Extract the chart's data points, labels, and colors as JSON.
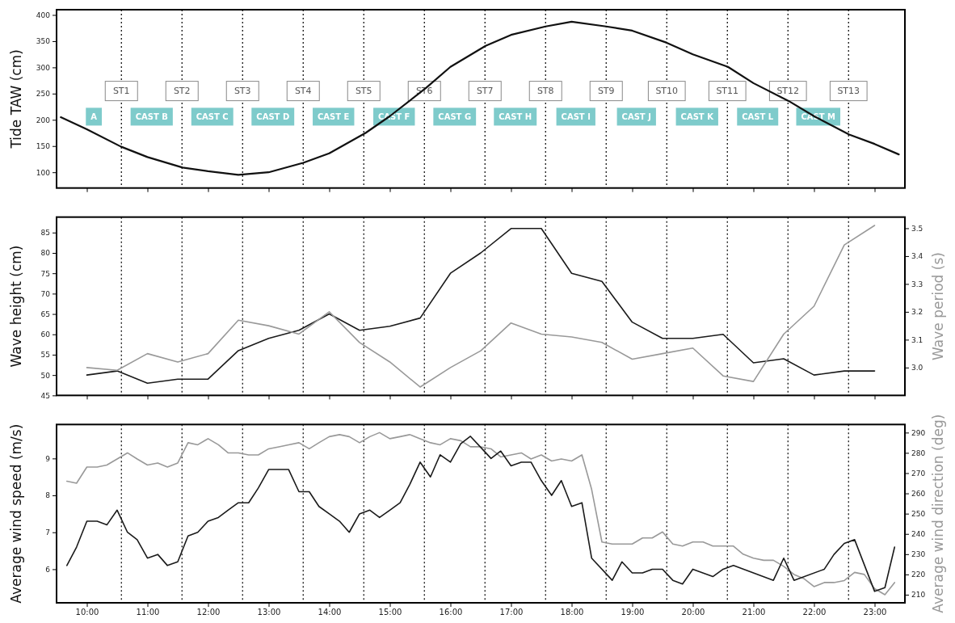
{
  "chart_data": [
    {
      "type": "line",
      "ylabel": "Tide TAW (cm)",
      "xlim": [
        9.5,
        23.5
      ],
      "ylim": [
        70,
        410
      ],
      "tick_labels": "y",
      "xticks": [
        {
          "value": 10,
          "label": null
        },
        {
          "value": 11,
          "label": null
        },
        {
          "value": 12,
          "label": null
        },
        {
          "value": 13,
          "label": null
        },
        {
          "value": 14,
          "label": null
        },
        {
          "value": 15,
          "label": null
        },
        {
          "value": 16,
          "label": null
        },
        {
          "value": 17,
          "label": null
        },
        {
          "value": 18,
          "label": null
        },
        {
          "value": 19,
          "label": null
        },
        {
          "value": 20,
          "label": null
        },
        {
          "value": 21,
          "label": null
        },
        {
          "value": 22,
          "label": null
        },
        {
          "value": 23,
          "label": null
        }
      ],
      "yticks": [
        100,
        150,
        200,
        250,
        300,
        350,
        400
      ],
      "series": [
        {
          "color": "#111111",
          "x": [
            9.57,
            10,
            10.56,
            11,
            11.58,
            12,
            12.5,
            13,
            13.57,
            14,
            14.6,
            15,
            15.6,
            16,
            16.58,
            17,
            17.57,
            18,
            18.57,
            19,
            19.57,
            20,
            20.58,
            21,
            21.58,
            22,
            22.58,
            23,
            23.4
          ],
          "values": [
            205,
            182,
            149,
            129,
            109,
            102,
            95,
            100,
            118,
            136,
            175,
            207,
            261,
            301,
            341,
            362,
            378,
            387,
            378,
            370,
            347,
            325,
            301,
            270,
            236,
            207,
            172,
            154,
            134
          ]
        }
      ],
      "ref_lines": [
        {
          "axis": "x",
          "value": 10.57,
          "label": "ST1",
          "line_style": "dotted",
          "color": "#000000"
        },
        {
          "axis": "x",
          "value": 11.57,
          "label": "ST2",
          "line_style": "dotted",
          "color": "#000000"
        },
        {
          "axis": "x",
          "value": 12.57,
          "label": "ST3",
          "line_style": "dotted",
          "color": "#000000"
        },
        {
          "axis": "x",
          "value": 13.57,
          "label": "ST4",
          "line_style": "dotted",
          "color": "#000000"
        },
        {
          "axis": "x",
          "value": 14.57,
          "label": "ST5",
          "line_style": "dotted",
          "color": "#000000"
        },
        {
          "axis": "x",
          "value": 15.57,
          "label": "ST6",
          "line_style": "dotted",
          "color": "#000000"
        },
        {
          "axis": "x",
          "value": 16.57,
          "label": "ST7",
          "line_style": "dotted",
          "color": "#000000"
        },
        {
          "axis": "x",
          "value": 17.57,
          "label": "ST8",
          "line_style": "dotted",
          "color": "#000000"
        },
        {
          "axis": "x",
          "value": 18.57,
          "label": "ST9",
          "line_style": "dotted",
          "color": "#000000"
        },
        {
          "axis": "x",
          "value": 19.57,
          "label": "ST10",
          "line_style": "dotted",
          "color": "#000000"
        },
        {
          "axis": "x",
          "value": 20.57,
          "label": "ST11",
          "line_style": "dotted",
          "color": "#000000"
        },
        {
          "axis": "x",
          "value": 21.57,
          "label": "ST12",
          "line_style": "dotted",
          "color": "#000000"
        },
        {
          "axis": "x",
          "value": 22.57,
          "label": "ST13",
          "line_style": "dotted",
          "color": "#000000"
        }
      ],
      "annotations": [
        "A",
        "CAST B",
        "CAST C",
        "CAST D",
        "CAST E",
        "CAST F",
        "CAST G",
        "CAST H",
        "CAST I",
        "CAST J",
        "CAST K",
        "CAST L",
        "CAST M"
      ]
    },
    {
      "type": "line",
      "ylabel": "Wave height (cm)",
      "y2label": "Wave period (s)",
      "xlim": [
        9.5,
        23.5
      ],
      "ylim": [
        45,
        88.8
      ],
      "y2lim": [
        2.9,
        3.54
      ],
      "tick_labels": "y",
      "xticks": [
        {
          "value": 10,
          "label": null
        },
        {
          "value": 11,
          "label": null
        },
        {
          "value": 12,
          "label": null
        },
        {
          "value": 13,
          "label": null
        },
        {
          "value": 14,
          "label": null
        },
        {
          "value": 15,
          "label": null
        },
        {
          "value": 16,
          "label": null
        },
        {
          "value": 17,
          "label": null
        },
        {
          "value": 18,
          "label": null
        },
        {
          "value": 19,
          "label": null
        },
        {
          "value": 20,
          "label": null
        },
        {
          "value": 21,
          "label": null
        },
        {
          "value": 22,
          "label": null
        },
        {
          "value": 23,
          "label": null
        }
      ],
      "yticks": [
        45,
        50,
        55,
        60,
        65,
        70,
        75,
        80,
        85
      ],
      "y2ticks": [
        {
          "value": 3.0,
          "label": "3.0"
        },
        {
          "value": 3.1,
          "label": "3.1"
        },
        {
          "value": 3.2,
          "label": "3.2"
        },
        {
          "value": 3.3,
          "label": "3.3"
        },
        {
          "value": 3.4,
          "label": "3.4"
        },
        {
          "value": 3.5,
          "label": "3.5"
        }
      ],
      "series": [
        {
          "color": "#1a1a1a",
          "x": [
            10,
            10.5,
            11,
            11.5,
            12,
            12.5,
            13,
            13.5,
            14,
            14.5,
            15,
            15.5,
            16,
            16.5,
            17,
            17.5,
            18,
            18.5,
            19,
            19.5,
            20,
            20.5,
            21,
            21.5,
            22,
            22.5,
            23
          ],
          "values": [
            50,
            51,
            48,
            49,
            49,
            56,
            59,
            61,
            65,
            61,
            62,
            64,
            75,
            80,
            86,
            86,
            75,
            73,
            63,
            59,
            59,
            60,
            53,
            54,
            50,
            51,
            51
          ]
        },
        {
          "color": "#999999",
          "axis": "y2",
          "x": [
            10,
            10.5,
            11,
            11.5,
            12,
            12.5,
            13,
            13.5,
            14,
            14.5,
            15,
            15.5,
            16,
            16.5,
            17,
            17.5,
            18,
            18.5,
            19,
            19.5,
            20,
            20.5,
            21,
            21.5,
            22,
            22.5,
            23
          ],
          "values": [
            3.0,
            2.99,
            3.05,
            3.02,
            3.05,
            3.17,
            3.15,
            3.12,
            3.2,
            3.09,
            3.02,
            2.93,
            3.0,
            3.06,
            3.16,
            3.12,
            3.11,
            3.09,
            3.03,
            3.05,
            3.07,
            2.97,
            2.95,
            3.12,
            3.22,
            3.44,
            3.51
          ]
        }
      ],
      "ref_lines": [
        {
          "axis": "x",
          "value": 10.57,
          "line_style": "dotted",
          "color": "#000000"
        },
        {
          "axis": "x",
          "value": 11.57,
          "line_style": "dotted",
          "color": "#000000"
        },
        {
          "axis": "x",
          "value": 12.57,
          "line_style": "dotted",
          "color": "#000000"
        },
        {
          "axis": "x",
          "value": 13.57,
          "line_style": "dotted",
          "color": "#000000"
        },
        {
          "axis": "x",
          "value": 14.57,
          "line_style": "dotted",
          "color": "#000000"
        },
        {
          "axis": "x",
          "value": 15.57,
          "line_style": "dotted",
          "color": "#000000"
        },
        {
          "axis": "x",
          "value": 16.57,
          "line_style": "dotted",
          "color": "#000000"
        },
        {
          "axis": "x",
          "value": 17.57,
          "line_style": "dotted",
          "color": "#000000"
        },
        {
          "axis": "x",
          "value": 18.57,
          "line_style": "dotted",
          "color": "#000000"
        },
        {
          "axis": "x",
          "value": 19.57,
          "line_style": "dotted",
          "color": "#000000"
        },
        {
          "axis": "x",
          "value": 20.57,
          "line_style": "dotted",
          "color": "#000000"
        },
        {
          "axis": "x",
          "value": 21.57,
          "line_style": "dotted",
          "color": "#000000"
        },
        {
          "axis": "x",
          "value": 22.57,
          "line_style": "dotted",
          "color": "#000000"
        }
      ]
    },
    {
      "type": "line",
      "ylabel": "Average wind speed (m/s)",
      "y2label": "Average wind direction (deg)",
      "xlim": [
        9.5,
        23.5
      ],
      "ylim": [
        5.09,
        9.92
      ],
      "y2lim": [
        206,
        294
      ],
      "xticks": [
        {
          "value": 10,
          "label": "10:00"
        },
        {
          "value": 11,
          "label": "11:00"
        },
        {
          "value": 12,
          "label": "12:00"
        },
        {
          "value": 13,
          "label": "13:00"
        },
        {
          "value": 14,
          "label": "14:00"
        },
        {
          "value": 15,
          "label": "15:00"
        },
        {
          "value": 16,
          "label": "16:00"
        },
        {
          "value": 17,
          "label": "17:00"
        },
        {
          "value": 18,
          "label": "18:00"
        },
        {
          "value": 19,
          "label": "19:00"
        },
        {
          "value": 20,
          "label": "20:00"
        },
        {
          "value": 21,
          "label": "21:00"
        },
        {
          "value": 22,
          "label": "22:00"
        },
        {
          "value": 23,
          "label": "23:00"
        }
      ],
      "yticks": [
        6,
        7,
        8,
        9
      ],
      "y2ticks": [
        210,
        220,
        230,
        240,
        250,
        260,
        270,
        280,
        290
      ],
      "series": [
        {
          "color": "#999999",
          "axis": "y2",
          "x": [
            9.67,
            9.83,
            10,
            10.17,
            10.33,
            10.5,
            10.67,
            10.83,
            11,
            11.17,
            11.33,
            11.5,
            11.67,
            11.83,
            12,
            12.17,
            12.33,
            12.5,
            12.67,
            12.83,
            13,
            13.17,
            13.33,
            13.5,
            13.67,
            13.83,
            14,
            14.17,
            14.33,
            14.5,
            14.67,
            14.83,
            15,
            15.17,
            15.33,
            15.5,
            15.67,
            15.83,
            16,
            16.17,
            16.33,
            16.5,
            16.67,
            16.83,
            17,
            17.17,
            17.33,
            17.5,
            17.67,
            17.83,
            18,
            18.17,
            18.33,
            18.5,
            18.67,
            18.83,
            19,
            19.17,
            19.33,
            19.5,
            19.67,
            19.83,
            20,
            20.17,
            20.33,
            20.5,
            20.67,
            20.83,
            21,
            21.17,
            21.33,
            21.5,
            21.67,
            21.83,
            22,
            22.17,
            22.33,
            22.5,
            22.67,
            22.83,
            23,
            23.17,
            23.33
          ],
          "values": [
            266,
            265,
            273,
            273,
            274,
            277,
            280,
            277,
            274,
            275,
            273,
            275,
            285,
            284,
            287,
            284,
            280,
            280,
            279,
            279,
            282,
            283,
            284,
            285,
            282,
            285,
            288,
            289,
            288,
            285,
            288,
            290,
            287,
            288,
            289,
            287,
            285,
            284,
            287,
            286,
            283,
            283,
            282,
            278,
            279,
            280,
            277,
            279,
            276,
            277,
            276,
            279,
            262,
            236,
            235,
            235,
            235,
            238,
            238,
            241,
            235,
            234,
            236,
            236,
            234,
            234,
            234,
            230,
            228,
            227,
            227,
            224,
            220,
            218,
            214,
            216,
            216,
            217,
            221,
            220,
            213,
            210,
            216
          ]
        },
        {
          "color": "#1a1a1a",
          "x": [
            9.67,
            9.83,
            10,
            10.17,
            10.33,
            10.5,
            10.67,
            10.83,
            11,
            11.17,
            11.33,
            11.5,
            11.67,
            11.83,
            12,
            12.17,
            12.33,
            12.5,
            12.67,
            12.83,
            13,
            13.17,
            13.33,
            13.5,
            13.67,
            13.83,
            14,
            14.17,
            14.33,
            14.5,
            14.67,
            14.83,
            15,
            15.17,
            15.33,
            15.5,
            15.67,
            15.83,
            16,
            16.17,
            16.33,
            16.5,
            16.67,
            16.83,
            17,
            17.17,
            17.33,
            17.5,
            17.67,
            17.83,
            18,
            18.17,
            18.33,
            18.67,
            18.83,
            19,
            19.17,
            19.33,
            19.5,
            19.67,
            19.83,
            20,
            20.33,
            20.5,
            20.67,
            21.33,
            21.5,
            21.67,
            22.17,
            22.33,
            22.5,
            22.67,
            23,
            23.17,
            23.33
          ],
          "values": [
            6.1,
            6.6,
            7.3,
            7.3,
            7.2,
            7.6,
            7.0,
            6.8,
            6.3,
            6.4,
            6.1,
            6.2,
            6.9,
            7.0,
            7.3,
            7.4,
            7.6,
            7.8,
            7.8,
            8.2,
            8.7,
            8.7,
            8.7,
            8.1,
            8.1,
            7.7,
            7.5,
            7.3,
            7.0,
            7.5,
            7.6,
            7.4,
            7.6,
            7.8,
            8.3,
            8.9,
            8.5,
            9.1,
            8.9,
            9.4,
            9.6,
            9.3,
            9.0,
            9.2,
            8.8,
            8.9,
            8.9,
            8.4,
            8.0,
            8.4,
            7.7,
            7.8,
            6.3,
            5.7,
            6.2,
            5.9,
            5.9,
            6.0,
            6.0,
            5.7,
            5.6,
            6.0,
            5.8,
            6.0,
            6.1,
            5.7,
            6.3,
            5.7,
            6.0,
            6.4,
            6.7,
            6.8,
            5.4,
            5.5,
            6.6
          ]
        }
      ],
      "ref_lines": [
        {
          "axis": "x",
          "value": 10.57,
          "line_style": "dotted",
          "color": "#000000"
        },
        {
          "axis": "x",
          "value": 11.57,
          "line_style": "dotted",
          "color": "#000000"
        },
        {
          "axis": "x",
          "value": 12.57,
          "line_style": "dotted",
          "color": "#000000"
        },
        {
          "axis": "x",
          "value": 13.57,
          "line_style": "dotted",
          "color": "#000000"
        },
        {
          "axis": "x",
          "value": 14.57,
          "line_style": "dotted",
          "color": "#000000"
        },
        {
          "axis": "x",
          "value": 15.57,
          "line_style": "dotted",
          "color": "#000000"
        },
        {
          "axis": "x",
          "value": 16.57,
          "line_style": "dotted",
          "color": "#000000"
        },
        {
          "axis": "x",
          "value": 17.57,
          "line_style": "dotted",
          "color": "#000000"
        },
        {
          "axis": "x",
          "value": 18.57,
          "line_style": "dotted",
          "color": "#000000"
        },
        {
          "axis": "x",
          "value": 19.57,
          "line_style": "dotted",
          "color": "#000000"
        },
        {
          "axis": "x",
          "value": 20.57,
          "line_style": "dotted",
          "color": "#000000"
        },
        {
          "axis": "x",
          "value": 21.57,
          "line_style": "dotted",
          "color": "#000000"
        },
        {
          "axis": "x",
          "value": 22.57,
          "line_style": "dotted",
          "color": "#000000"
        }
      ]
    }
  ]
}
